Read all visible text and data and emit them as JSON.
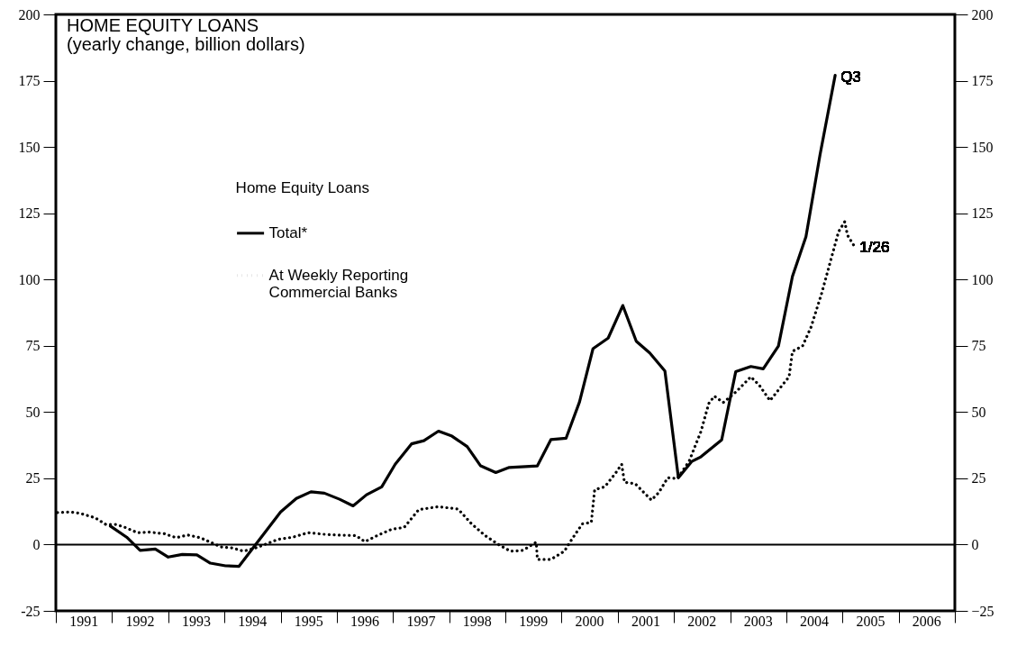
{
  "chart_data": {
    "type": "line",
    "title": "HOME EQUITY LOANS",
    "subtitle": "(yearly change, billion dollars)",
    "legend_title": "Home Equity Loans",
    "xlim": [
      1991,
      2007
    ],
    "xticks": [
      {
        "value": 1991,
        "label": null
      },
      {
        "value": 1991.5,
        "label": "1991"
      },
      {
        "value": 1992,
        "label": null
      },
      {
        "value": 1992.5,
        "label": "1992"
      },
      {
        "value": 1993,
        "label": null
      },
      {
        "value": 1993.5,
        "label": "1993"
      },
      {
        "value": 1994,
        "label": null
      },
      {
        "value": 1994.5,
        "label": "1994"
      },
      {
        "value": 1995,
        "label": null
      },
      {
        "value": 1995.5,
        "label": "1995"
      },
      {
        "value": 1996,
        "label": null
      },
      {
        "value": 1996.5,
        "label": "1996"
      },
      {
        "value": 1997,
        "label": null
      },
      {
        "value": 1997.5,
        "label": "1997"
      },
      {
        "value": 1998,
        "label": null
      },
      {
        "value": 1998.5,
        "label": "1998"
      },
      {
        "value": 1999,
        "label": null
      },
      {
        "value": 1999.5,
        "label": "1999"
      },
      {
        "value": 2000,
        "label": null
      },
      {
        "value": 2000.5,
        "label": "2000"
      },
      {
        "value": 2001,
        "label": null
      },
      {
        "value": 2001.5,
        "label": "2001"
      },
      {
        "value": 2002,
        "label": null
      },
      {
        "value": 2002.5,
        "label": "2002"
      },
      {
        "value": 2003,
        "label": null
      },
      {
        "value": 2003.5,
        "label": "2003"
      },
      {
        "value": 2004,
        "label": null
      },
      {
        "value": 2004.5,
        "label": "2004"
      },
      {
        "value": 2005,
        "label": null
      },
      {
        "value": 2005.5,
        "label": "2005"
      },
      {
        "value": 2006,
        "label": null
      },
      {
        "value": 2006.5,
        "label": "2006"
      },
      {
        "value": 2007,
        "label": null
      }
    ],
    "ylim": [
      -25,
      200
    ],
    "yticks": [
      -25,
      0,
      25,
      50,
      75,
      100,
      125,
      150,
      175,
      200
    ],
    "y2lim": [
      -25,
      200
    ],
    "y2ticks": [
      -25,
      0,
      25,
      50,
      75,
      100,
      125,
      150,
      175,
      200
    ],
    "grid": false,
    "legend": "left",
    "marker": "none",
    "ref_lines": [
      {
        "axis": "y",
        "value": 0
      }
    ],
    "annotations": [
      {
        "text": "Q3",
        "x": 2004.87,
        "y": 177
      },
      {
        "text": "1/26",
        "x": 2005.21,
        "y": 112.6
      }
    ],
    "series": [
      {
        "name": "Total*",
        "color": "#000000",
        "line_style": "solid",
        "x": [
          1991.97,
          1992.26,
          1992.5,
          1992.77,
          1993.0,
          1993.25,
          1993.51,
          1993.75,
          1994.02,
          1994.26,
          1995.0,
          1995.28,
          1995.54,
          1995.78,
          1996.05,
          1996.29,
          1996.53,
          1996.8,
          1997.04,
          1997.33,
          1997.55,
          1997.81,
          1998.05,
          1998.32,
          1998.56,
          1998.83,
          1999.07,
          1999.57,
          1999.81,
          2000.08,
          2000.32,
          2000.56,
          2000.83,
          2001.09,
          2001.33,
          2001.57,
          2001.84,
          2002.08,
          2002.32,
          2002.48,
          2002.85,
          2003.1,
          2003.37,
          2003.59,
          2003.86,
          2004.11,
          2004.35,
          2004.6,
          2004.87
        ],
        "values": [
          7,
          2.8,
          -2.2,
          -1.7,
          -4.7,
          -3.7,
          -3.9,
          -7,
          -8,
          -8.2,
          12.3,
          17.4,
          19.9,
          19.4,
          17.1,
          14.6,
          18.8,
          21.8,
          30.3,
          38,
          39.2,
          42.8,
          40.9,
          37,
          29.7,
          27.2,
          29.1,
          29.7,
          39.6,
          40.1,
          53.8,
          73.9,
          77.9,
          90.2,
          76.7,
          72.3,
          65.5,
          25.2,
          31.4,
          33.1,
          39.5,
          65.2,
          67.2,
          66.3,
          74.9,
          101.2,
          116.1,
          147,
          177
        ]
      },
      {
        "name": "At Weekly Reporting Commercial Banks",
        "color": "#000000",
        "line_style": "dotted",
        "x": [
          1991.03,
          1991.25,
          1991.43,
          1991.7,
          1991.89,
          1992.07,
          1992.23,
          1992.45,
          1992.66,
          1992.93,
          1993.14,
          1993.35,
          1993.57,
          1993.75,
          1993.94,
          1994.15,
          1994.34,
          1994.58,
          1994.74,
          1994.96,
          1995.22,
          1995.49,
          1995.76,
          1996.02,
          1996.34,
          1996.5,
          1996.74,
          1996.98,
          1997.2,
          1997.46,
          1997.81,
          1998.16,
          1998.4,
          1998.64,
          1998.88,
          1999.09,
          1999.31,
          1999.55,
          1999.57,
          1999.81,
          2000.05,
          2000.19,
          2000.37,
          2000.53,
          2000.59,
          2000.77,
          2000.96,
          2001.07,
          2001.12,
          2001.31,
          2001.44,
          2001.6,
          2001.73,
          2001.89,
          2002.06,
          2002.27,
          2002.48,
          2002.62,
          2002.72,
          2002.88,
          2003.1,
          2003.37,
          2003.52,
          2003.71,
          2003.95,
          2004.05,
          2004.11,
          2004.29,
          2004.44,
          2004.63,
          2004.93,
          2005.04,
          2005.09,
          2005.21
        ],
        "values": [
          12.1,
          12.3,
          11.8,
          10.1,
          7.6,
          7.6,
          6.5,
          4.5,
          4.7,
          4.1,
          2.6,
          3.6,
          2.6,
          0.9,
          -0.9,
          -1.3,
          -2.5,
          -1.1,
          0.2,
          2,
          2.8,
          4.5,
          3.9,
          3.6,
          3.4,
          1.1,
          3.6,
          5.8,
          6.5,
          13.2,
          14.3,
          13.4,
          7.8,
          3.4,
          0,
          -2.5,
          -2.2,
          0.9,
          -5.6,
          -5.6,
          -2.5,
          2.2,
          7.8,
          8.4,
          20.7,
          21.8,
          26.9,
          30.3,
          23.5,
          23,
          20.2,
          16.8,
          19.6,
          25.2,
          24.9,
          31.4,
          42.6,
          53.2,
          56,
          53.6,
          57.5,
          63.3,
          60.1,
          54.3,
          60.7,
          63.3,
          72.9,
          74.9,
          82,
          94.8,
          118,
          121.8,
          116.7,
          112.6
        ]
      }
    ]
  }
}
